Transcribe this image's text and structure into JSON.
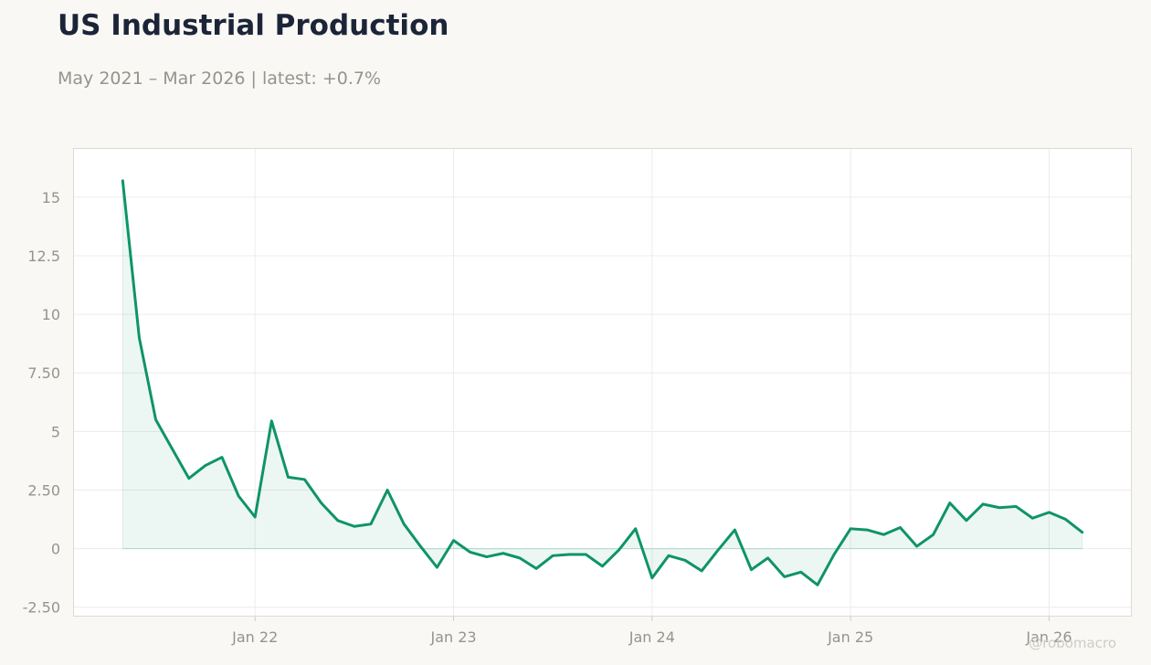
{
  "header": {
    "title": "US Industrial Production",
    "subtitle": "May 2021 – Mar 2026 | latest: +0.7%"
  },
  "watermark": "@robomacro",
  "colors": {
    "line": "#0f9467",
    "fill": "#0f9467",
    "background": "#f9f8f5",
    "plot_background": "#ffffff",
    "grid": "#eeece8",
    "text_muted": "#96938d",
    "title": "#1c2538"
  },
  "chart_data": {
    "type": "area",
    "title": "US Industrial Production",
    "subtitle": "May 2021 – Mar 2026 | latest: +0.7%",
    "xlabel": "",
    "ylabel": "",
    "x_start": "2021-05",
    "x_tick_labels": [
      "Jan 22",
      "Jan 23",
      "Jan 24",
      "Jan 25",
      "Jan 26"
    ],
    "x_tick_dates": [
      "2022-01",
      "2023-01",
      "2024-01",
      "2025-01",
      "2026-01"
    ],
    "y_ticks": [
      -2.5,
      0,
      2.5,
      5,
      7.5,
      10,
      12.5,
      15
    ],
    "y_tick_labels": [
      "-2.50",
      "0",
      "2.50",
      "5",
      "7.50",
      "10",
      "12.5",
      "15"
    ],
    "ylim": [
      -2.9,
      17.1
    ],
    "xlim": [
      "2021-02",
      "2026-06"
    ],
    "grid": true,
    "x": [
      "2021-05",
      "2021-06",
      "2021-07",
      "2021-08",
      "2021-09",
      "2021-10",
      "2021-11",
      "2021-12",
      "2022-01",
      "2022-02",
      "2022-03",
      "2022-04",
      "2022-05",
      "2022-06",
      "2022-07",
      "2022-08",
      "2022-09",
      "2022-10",
      "2022-11",
      "2022-12",
      "2023-01",
      "2023-02",
      "2023-03",
      "2023-04",
      "2023-05",
      "2023-06",
      "2023-07",
      "2023-08",
      "2023-09",
      "2023-10",
      "2023-11",
      "2023-12",
      "2024-01",
      "2024-02",
      "2024-03",
      "2024-04",
      "2024-05",
      "2024-06",
      "2024-07",
      "2024-08",
      "2024-09",
      "2024-10",
      "2024-11",
      "2024-12",
      "2025-01",
      "2025-02",
      "2025-03",
      "2025-04",
      "2025-05",
      "2025-06",
      "2025-07",
      "2025-08",
      "2025-09",
      "2025-10",
      "2025-11",
      "2025-12",
      "2026-01",
      "2026-02",
      "2026-03"
    ],
    "values": [
      15.7,
      9.0,
      5.5,
      4.25,
      3.0,
      3.55,
      3.9,
      2.25,
      1.35,
      5.45,
      3.05,
      2.95,
      1.95,
      1.2,
      0.95,
      1.05,
      2.5,
      1.05,
      0.1,
      -0.8,
      0.35,
      -0.15,
      -0.35,
      -0.2,
      -0.4,
      -0.85,
      -0.3,
      -0.25,
      -0.25,
      -0.75,
      -0.05,
      0.85,
      -1.25,
      -0.3,
      -0.5,
      -0.95,
      -0.05,
      0.8,
      -0.9,
      -0.4,
      -1.2,
      -1.0,
      -1.55,
      -0.25,
      0.85,
      0.8,
      0.6,
      0.9,
      0.1,
      0.6,
      1.95,
      1.2,
      1.9,
      1.75,
      1.8,
      1.3,
      1.55,
      1.25,
      0.7
    ]
  }
}
